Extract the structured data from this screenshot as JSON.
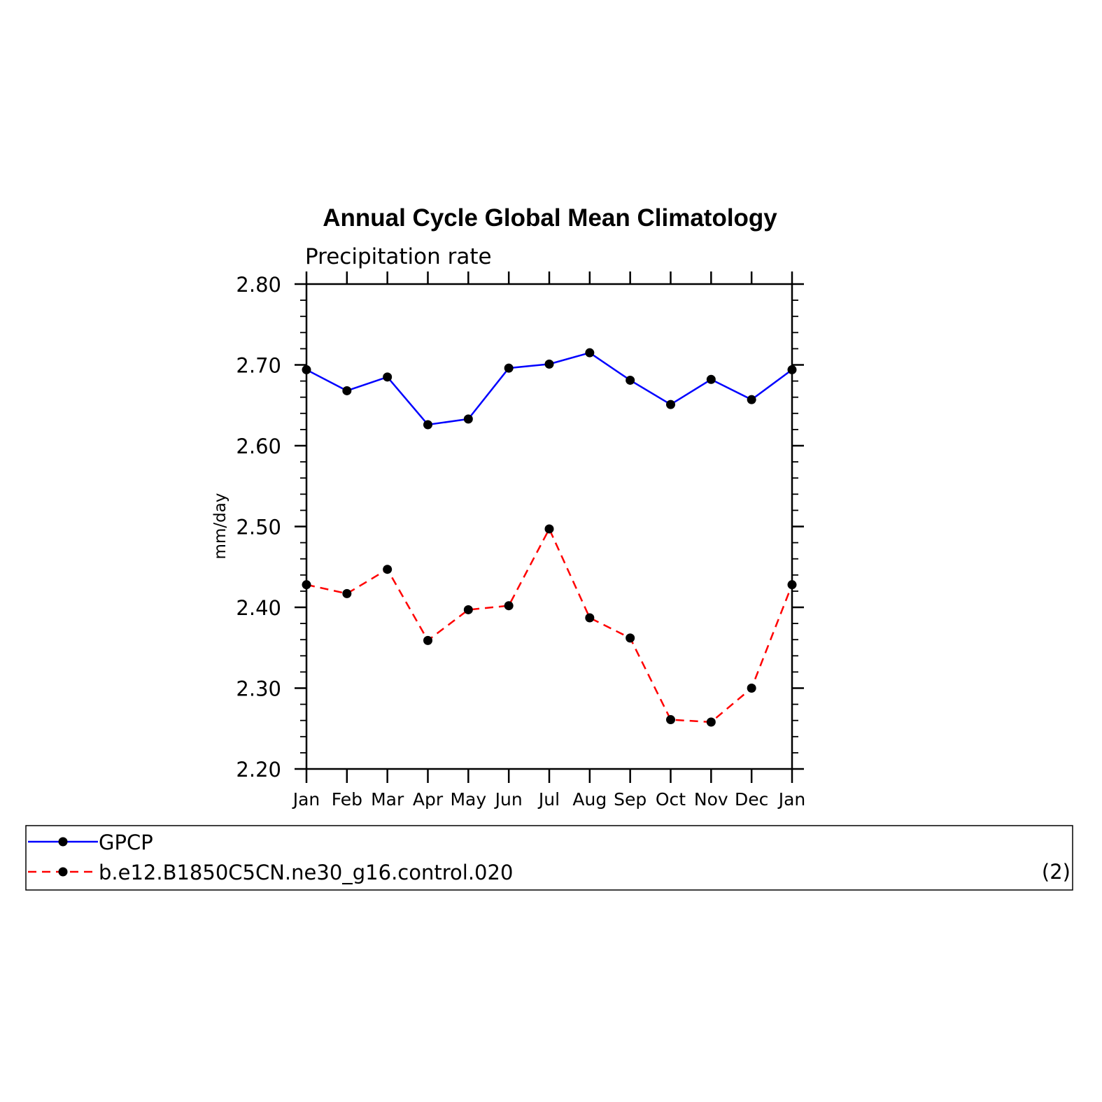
{
  "chart_data": {
    "type": "line",
    "title": "Annual Cycle Global Mean Climatology",
    "subtitle": "Precipitation rate",
    "xlabel": "",
    "ylabel": "mm/day",
    "categories": [
      "Jan",
      "Feb",
      "Mar",
      "Apr",
      "May",
      "Jun",
      "Jul",
      "Aug",
      "Sep",
      "Oct",
      "Nov",
      "Dec",
      "Jan"
    ],
    "ylim": [
      2.2,
      2.8
    ],
    "yticks": [
      "2.20",
      "2.30",
      "2.40",
      "2.50",
      "2.60",
      "2.70",
      "2.80"
    ],
    "grid": false,
    "legend_position": "bottom",
    "series": [
      {
        "name": "GPCP",
        "color": "#0000ff",
        "line_style": "solid",
        "marker": "filled-circle",
        "values": [
          2.694,
          2.668,
          2.685,
          2.626,
          2.633,
          2.696,
          2.701,
          2.715,
          2.681,
          2.651,
          2.682,
          2.657,
          2.694
        ]
      },
      {
        "name": "b.e12.B1850C5CN.ne30_g16.control.020",
        "color": "#ff0000",
        "line_style": "dashed",
        "marker": "filled-circle",
        "values": [
          2.428,
          2.417,
          2.447,
          2.359,
          2.397,
          2.402,
          2.497,
          2.387,
          2.362,
          2.261,
          2.258,
          2.3,
          2.428
        ]
      }
    ],
    "panel_label": "(2)"
  }
}
